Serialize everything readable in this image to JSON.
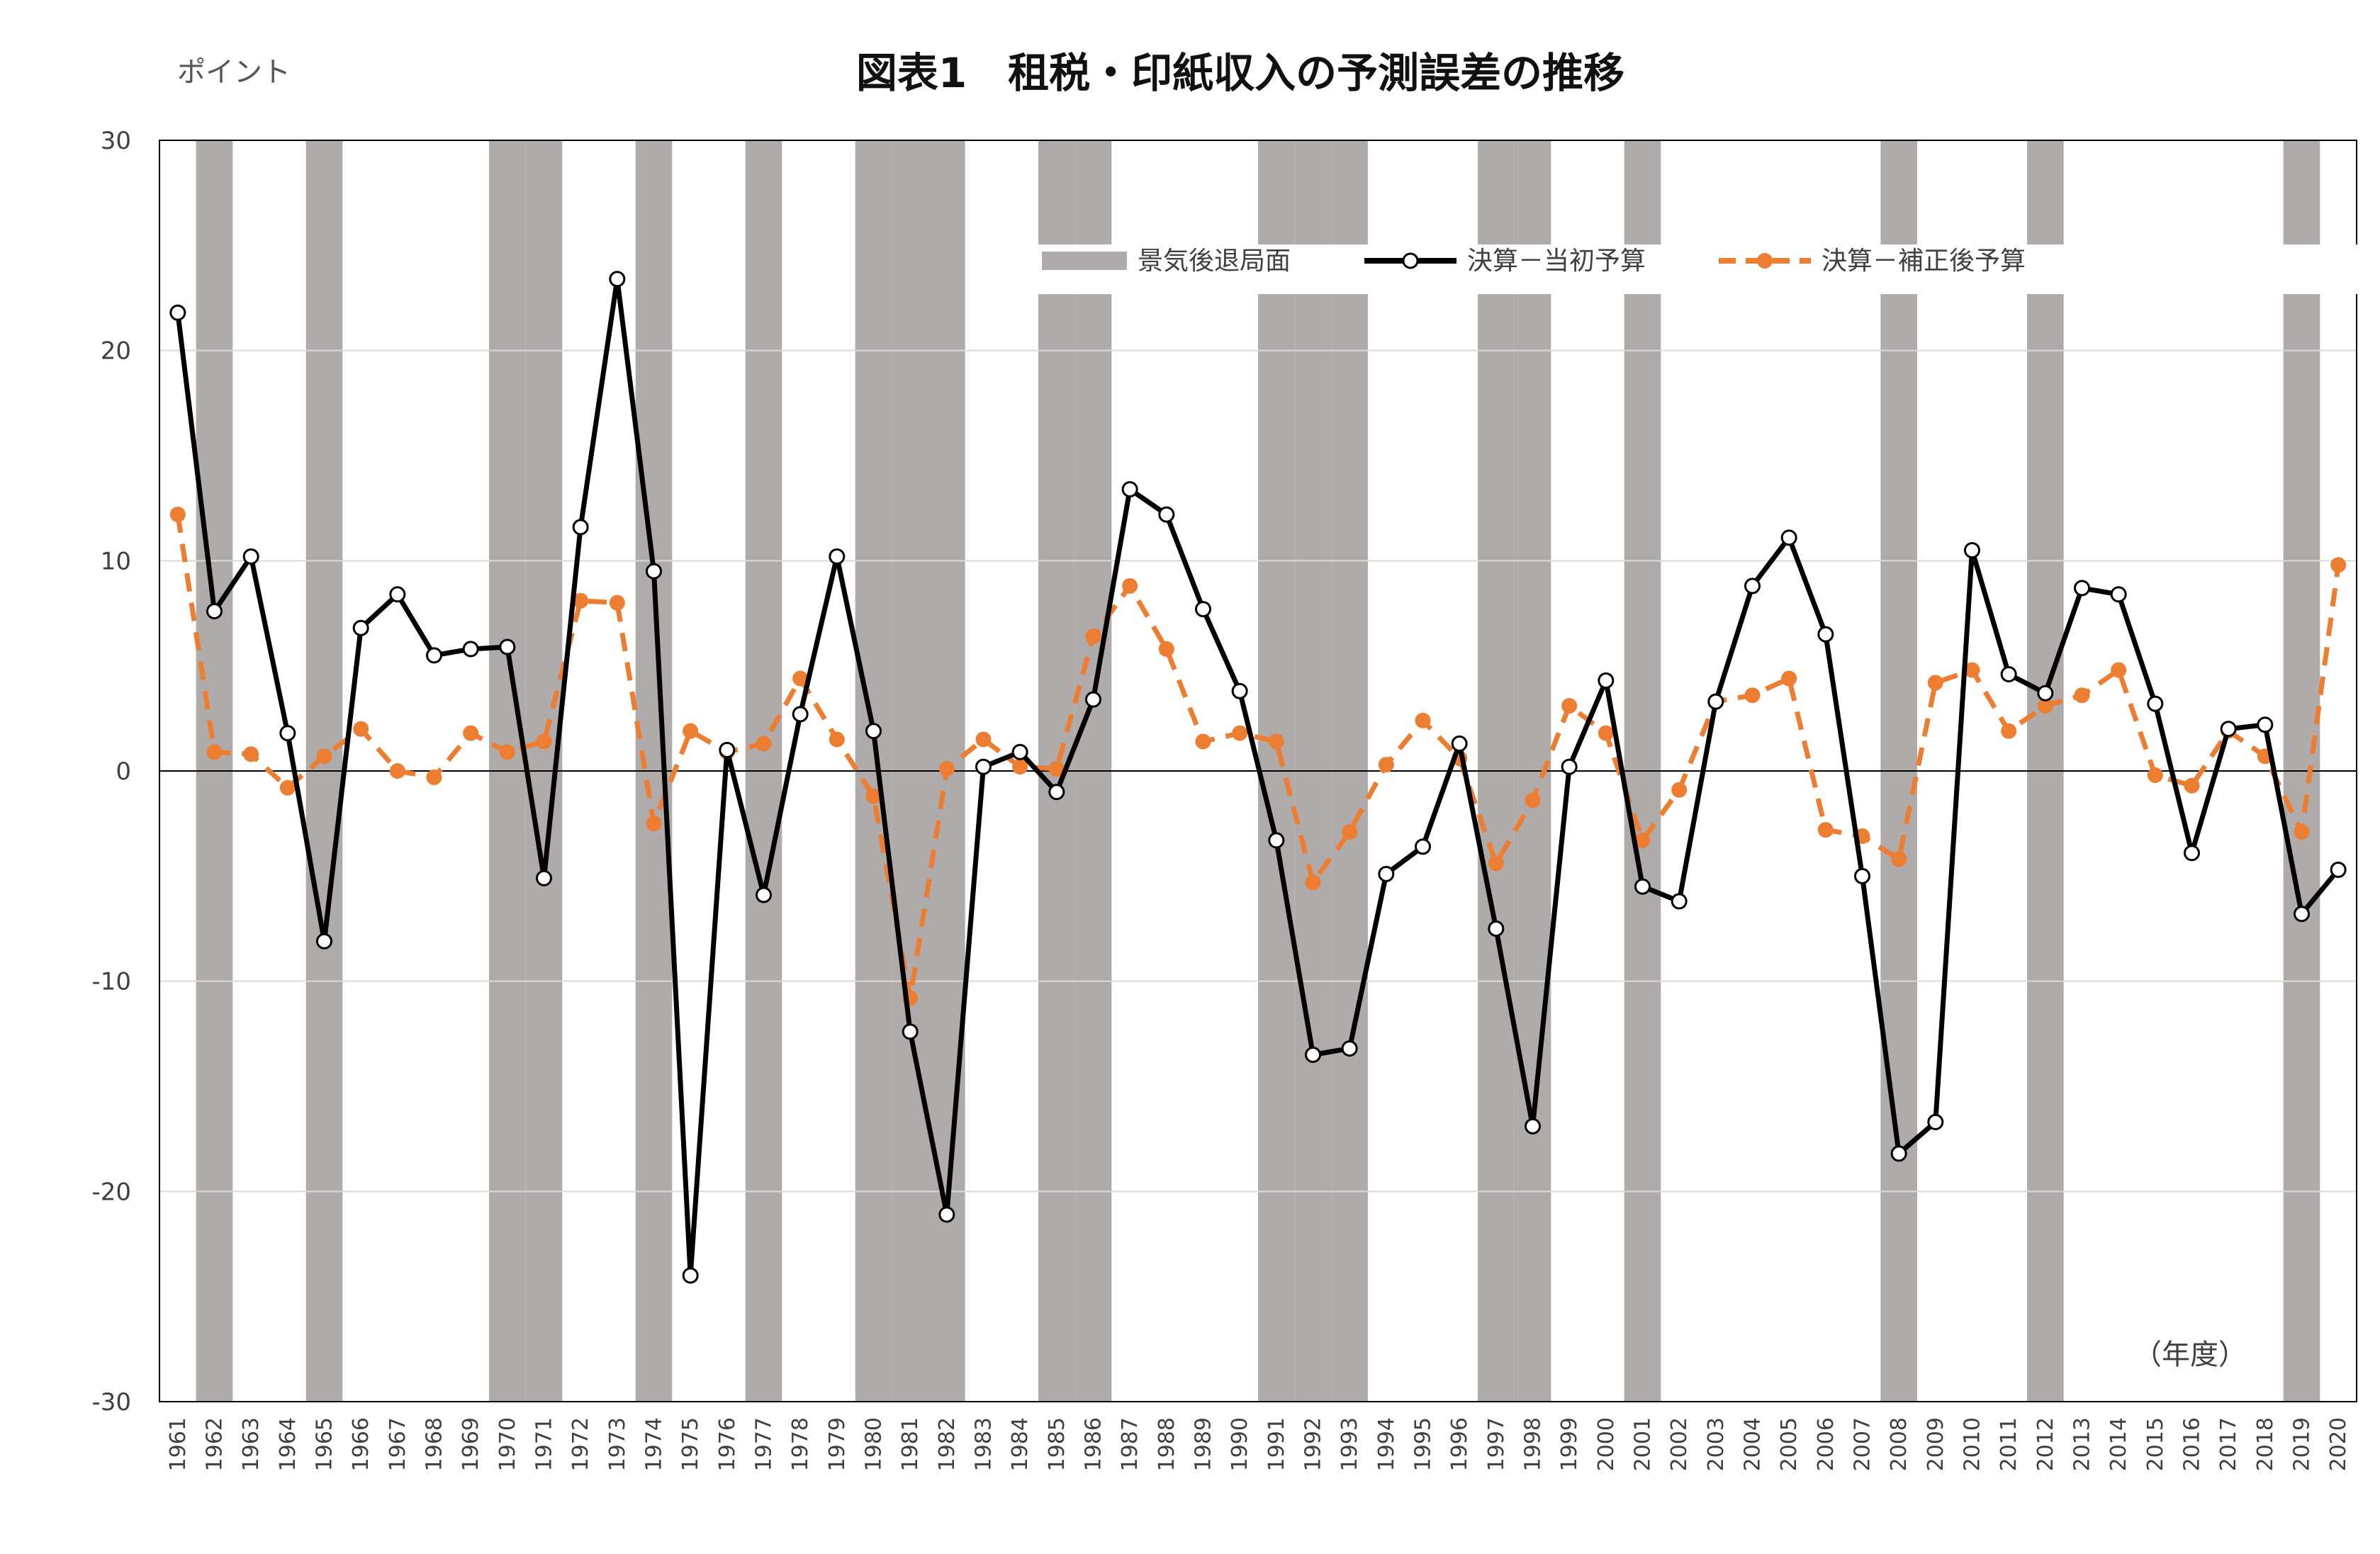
{
  "chart_data": {
    "type": "line",
    "title": "図表1　租税・印紙収入の予測誤差の推移",
    "ylabel": "ポイント",
    "xlabel": "（年度）",
    "ylim": [
      -30,
      30
    ],
    "yticks": [
      30,
      20,
      10,
      0,
      -10,
      -20,
      -30
    ],
    "grid": true,
    "legend_position": "top-right",
    "x": [
      "1961",
      "1962",
      "1963",
      "1964",
      "1965",
      "1966",
      "1967",
      "1968",
      "1969",
      "1970",
      "1971",
      "1972",
      "1973",
      "1974",
      "1975",
      "1976",
      "1977",
      "1978",
      "1979",
      "1980",
      "1981",
      "1982",
      "1983",
      "1984",
      "1985",
      "1986",
      "1987",
      "1988",
      "1989",
      "1990",
      "1991",
      "1992",
      "1993",
      "1994",
      "1995",
      "1996",
      "1997",
      "1998",
      "1999",
      "2000",
      "2001",
      "2002",
      "2003",
      "2004",
      "2005",
      "2006",
      "2007",
      "2008",
      "2009",
      "2010",
      "2011",
      "2012",
      "2013",
      "2014",
      "2015",
      "2016",
      "2017",
      "2018",
      "2019",
      "2020"
    ],
    "recession_years": [
      "1962",
      "1965",
      "1970",
      "1971",
      "1974",
      "1977",
      "1980",
      "1981",
      "1982",
      "1985",
      "1986",
      "1991",
      "1992",
      "1993",
      "1997",
      "1998",
      "2001",
      "2008",
      "2012",
      "2019"
    ],
    "series": [
      {
        "name": "決算－当初予算",
        "color": "#000000",
        "style": "solid",
        "marker": "open-circle",
        "values": [
          21.8,
          7.6,
          10.2,
          1.8,
          -8.1,
          6.8,
          8.4,
          5.5,
          5.8,
          5.9,
          -5.1,
          11.6,
          23.4,
          9.5,
          -24.0,
          1.0,
          -5.9,
          2.7,
          10.2,
          1.9,
          -12.4,
          -21.1,
          0.2,
          0.9,
          -1.0,
          3.4,
          13.4,
          12.2,
          7.7,
          3.8,
          -3.3,
          -13.5,
          -13.2,
          -4.9,
          -3.6,
          1.3,
          -7.5,
          -16.9,
          0.2,
          4.3,
          -5.5,
          -6.2,
          3.3,
          8.8,
          11.1,
          6.5,
          -5.0,
          -18.2,
          -16.7,
          10.5,
          4.6,
          3.7,
          8.7,
          8.4,
          3.2,
          -3.9,
          2.0,
          2.2,
          -6.8,
          -4.7
        ]
      },
      {
        "name": "決算－補正後予算",
        "color": "#ED7D31",
        "style": "dashed",
        "marker": "filled-circle",
        "values": [
          12.2,
          0.9,
          0.8,
          -0.8,
          0.7,
          2.0,
          0.0,
          -0.3,
          1.8,
          0.9,
          1.4,
          8.1,
          8.0,
          -2.5,
          1.9,
          0.9,
          1.3,
          4.4,
          1.5,
          -1.2,
          -10.8,
          0.1,
          1.5,
          0.2,
          0.1,
          6.4,
          8.8,
          5.8,
          1.4,
          1.8,
          1.4,
          -5.3,
          -2.9,
          0.3,
          2.4,
          0.6,
          -4.4,
          -1.4,
          3.1,
          1.8,
          -3.3,
          -0.9,
          3.3,
          3.6,
          4.4,
          -2.8,
          -3.1,
          -4.2,
          4.2,
          4.8,
          1.9,
          3.1,
          3.6,
          4.8,
          -0.2,
          -0.7,
          1.9,
          0.7,
          -2.9,
          9.8
        ]
      }
    ],
    "recession_legend": "景気後退局面",
    "colors": {
      "recession": "#AFABAB",
      "gridline": "#D9D9D9",
      "axis": "#000000"
    }
  }
}
